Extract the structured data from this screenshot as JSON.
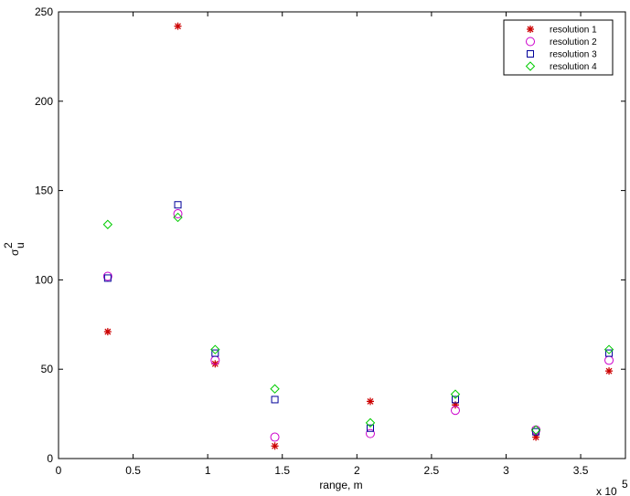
{
  "chart_data": {
    "type": "scatter",
    "title": "",
    "xlabel": "range, m",
    "ylabel_main": "σ",
    "ylabel_sup": "2",
    "ylabel_sub": "u",
    "x_multiplier_label": "x 10",
    "x_multiplier_exp": "5",
    "xlim": [
      0,
      3.8
    ],
    "ylim": [
      0,
      250
    ],
    "x_ticks": [
      0,
      0.5,
      1,
      1.5,
      2,
      2.5,
      3,
      3.5
    ],
    "x_tick_labels": [
      "0",
      "0.5",
      "1",
      "1.5",
      "2",
      "2.5",
      "3",
      "3.5"
    ],
    "y_ticks": [
      0,
      50,
      100,
      150,
      200,
      250
    ],
    "y_tick_labels": [
      "0",
      "50",
      "100",
      "150",
      "200",
      "250"
    ],
    "grid": false,
    "legend_position": "top-right",
    "x_units_note": "x values in units of 10^5 m",
    "series": [
      {
        "name": "resolution 1",
        "marker": "asterisk",
        "color": "#cc0000",
        "points": [
          [
            0.33,
            71
          ],
          [
            0.8,
            242
          ],
          [
            1.05,
            53
          ],
          [
            1.45,
            7
          ],
          [
            2.09,
            32
          ],
          [
            2.66,
            30
          ],
          [
            3.2,
            12
          ],
          [
            3.69,
            49
          ]
        ]
      },
      {
        "name": "resolution 2",
        "marker": "circle",
        "color": "#cc00cc",
        "points": [
          [
            0.33,
            102
          ],
          [
            0.8,
            137
          ],
          [
            1.05,
            55
          ],
          [
            1.45,
            12
          ],
          [
            2.09,
            14
          ],
          [
            2.66,
            27
          ],
          [
            3.2,
            16
          ],
          [
            3.69,
            55
          ]
        ]
      },
      {
        "name": "resolution 3",
        "marker": "square",
        "color": "#000099",
        "points": [
          [
            0.33,
            101
          ],
          [
            0.8,
            142
          ],
          [
            1.05,
            59
          ],
          [
            1.45,
            33
          ],
          [
            2.09,
            17
          ],
          [
            2.66,
            33
          ],
          [
            3.2,
            15
          ],
          [
            3.69,
            59
          ]
        ]
      },
      {
        "name": "resolution 4",
        "marker": "diamond",
        "color": "#00cc00",
        "points": [
          [
            0.33,
            131
          ],
          [
            0.8,
            135
          ],
          [
            1.05,
            61
          ],
          [
            1.45,
            39
          ],
          [
            2.09,
            20
          ],
          [
            2.66,
            36
          ],
          [
            3.2,
            16
          ],
          [
            3.69,
            61
          ]
        ]
      }
    ]
  }
}
